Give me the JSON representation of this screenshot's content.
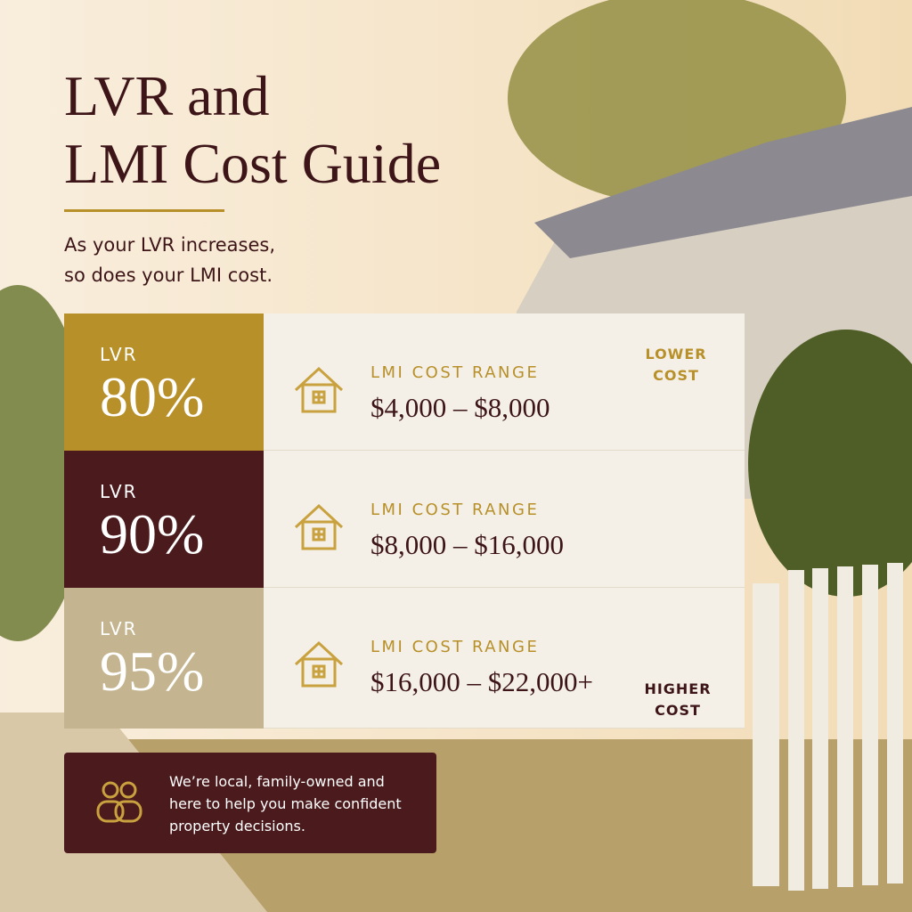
{
  "header": {
    "title_lines": [
      "LVR and",
      "LMI Cost Guide"
    ],
    "subtitle_lines": [
      "As your LVR increases,",
      "so does your LMI cost."
    ]
  },
  "rows": [
    {
      "label": "LVR",
      "lvr": "80%",
      "cost_label": "LMI COST RANGE",
      "cost_range": "$4,000 – $8,000"
    },
    {
      "label": "LVR",
      "lvr": "90%",
      "cost_label": "LMI COST RANGE",
      "cost_range": "$8,000 – $16,000"
    },
    {
      "label": "LVR",
      "lvr": "95%",
      "cost_label": "LMI COST RANGE",
      "cost_range": "$16,000 – $22,000+"
    }
  ],
  "scale": {
    "top_lines": [
      "LOWER",
      "COST"
    ],
    "bottom_lines": [
      "HIGHER",
      "COST"
    ]
  },
  "footer": {
    "lines": [
      "We’re local, family-owned and",
      "here to help you make confident",
      "property decisions."
    ]
  }
}
